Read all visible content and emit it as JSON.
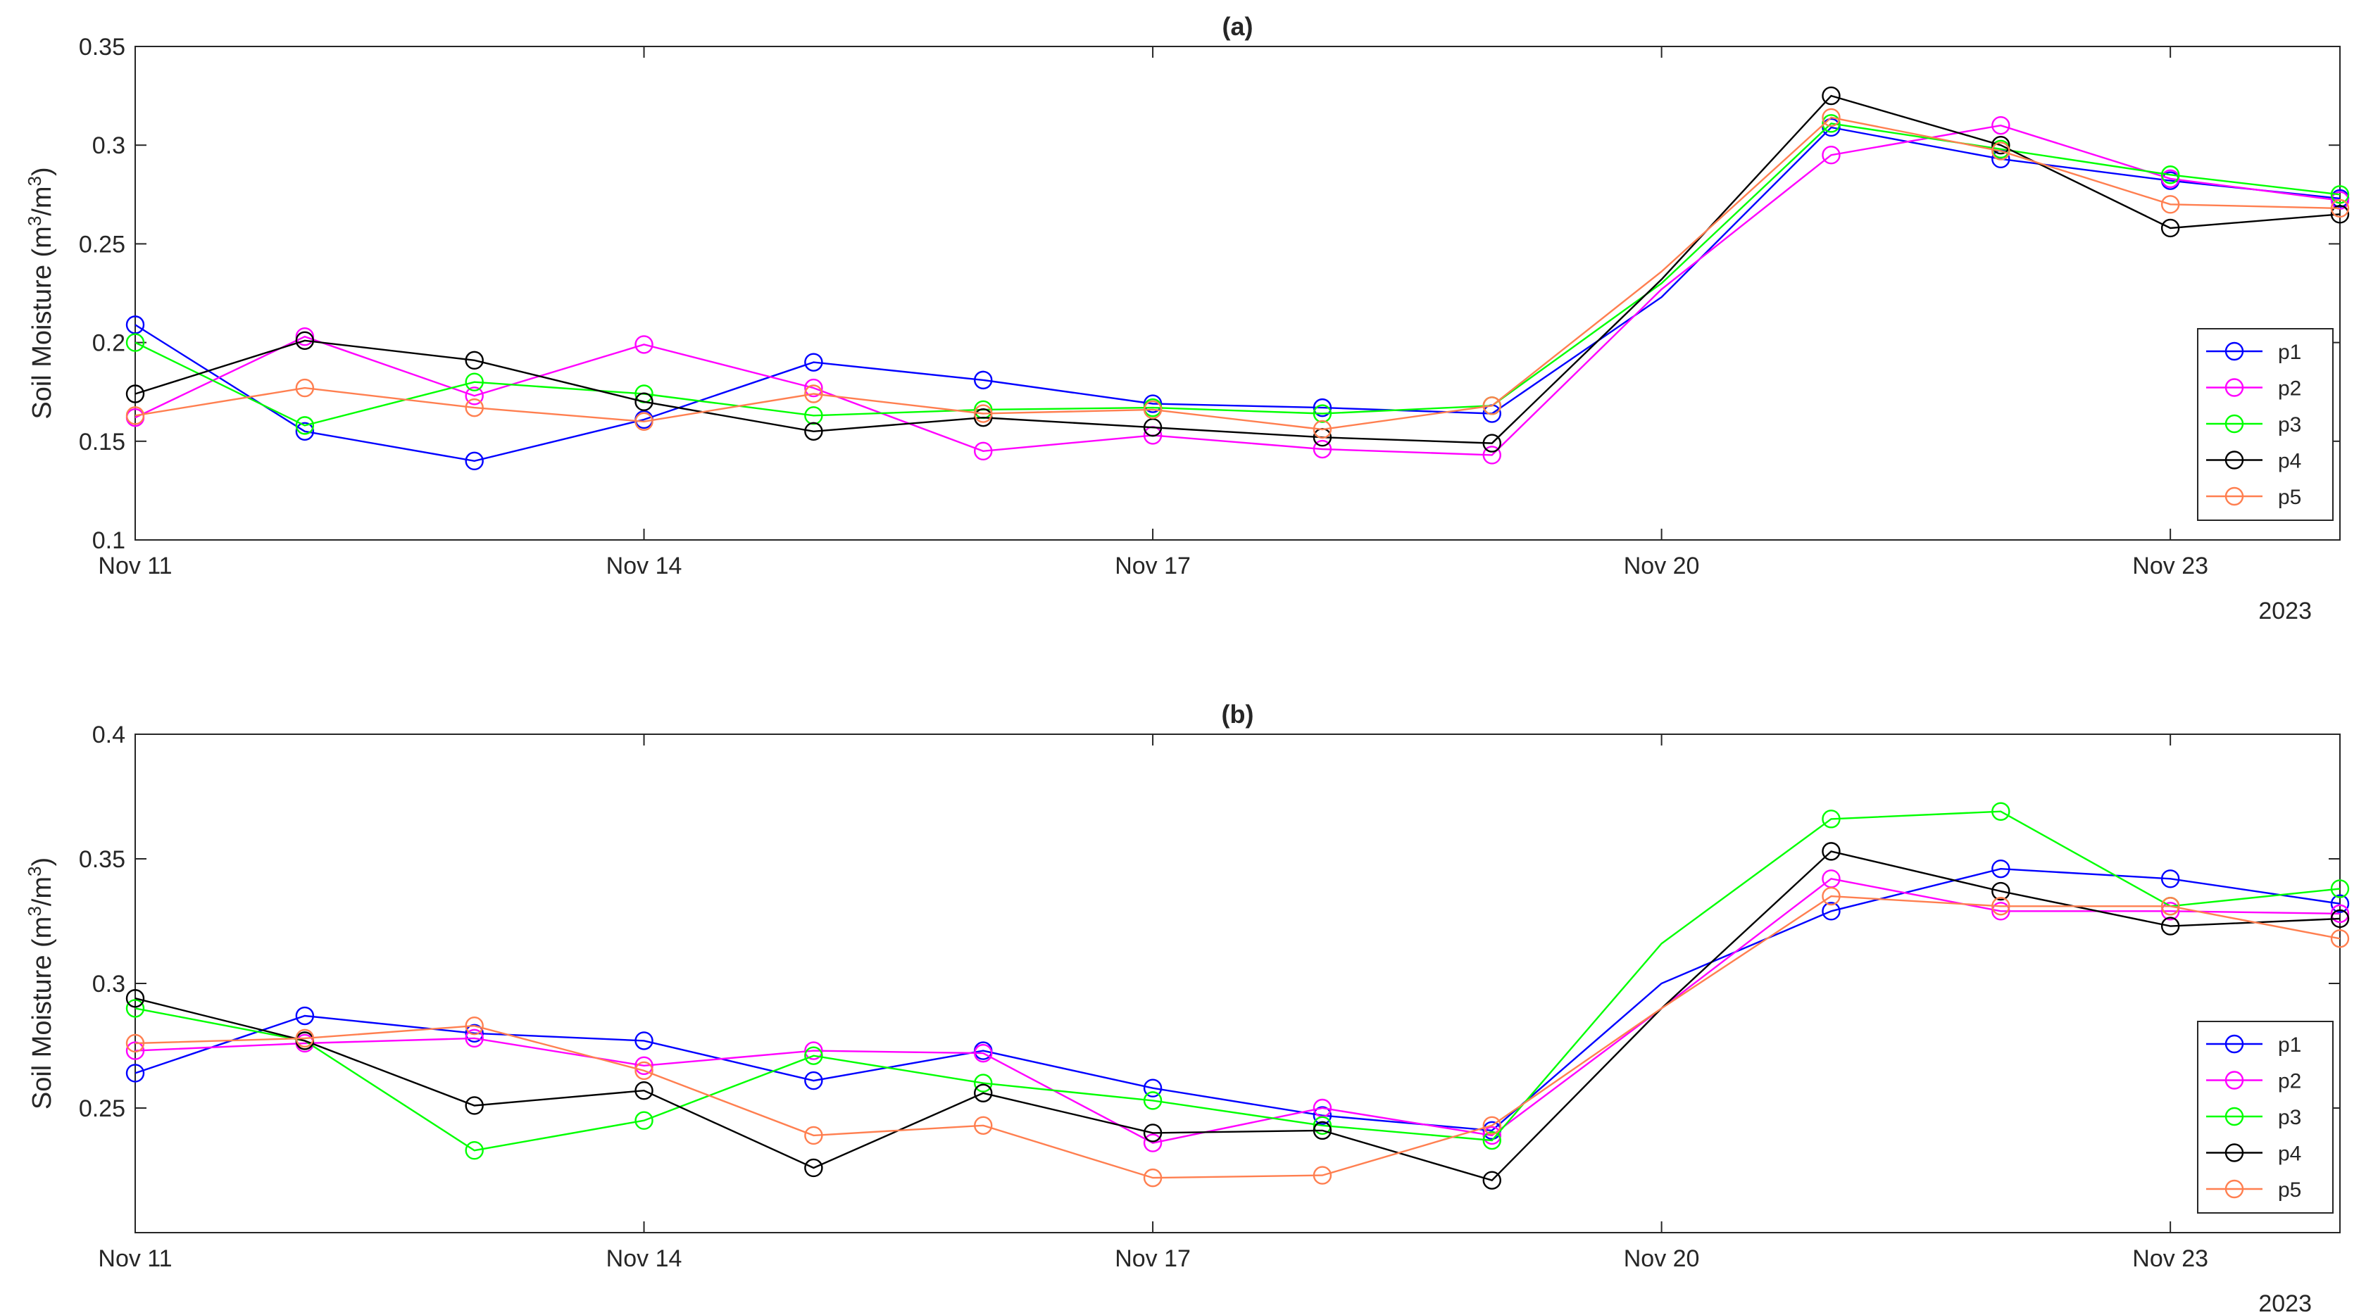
{
  "chart_data": [
    {
      "type": "line",
      "title": "(a)",
      "xlabel": "",
      "ylabel": "Soil Moisture (m",
      "ylabel_sup1": "3",
      "ylabel_mid": "/m",
      "ylabel_sup2": "3",
      "ylabel_end": ")",
      "xlim": [
        0,
        13
      ],
      "ylim": [
        0.1,
        0.35
      ],
      "yticks": [
        0.1,
        0.15,
        0.2,
        0.25,
        0.3,
        0.35
      ],
      "ytick_labels": [
        "0.1",
        "0.15",
        "0.2",
        "0.25",
        "0.3",
        "0.35"
      ],
      "xticks": [
        0,
        3,
        6,
        9,
        12
      ],
      "xtick_labels": [
        "Nov 11",
        "Nov 14",
        "Nov 17",
        "Nov 20",
        "Nov 23"
      ],
      "year_label": "2023",
      "x": [
        0,
        1,
        2,
        3,
        4,
        5,
        6,
        7,
        8,
        9,
        10,
        11,
        12,
        13
      ],
      "legend_position": "bottom-right",
      "series": [
        {
          "name": "p1",
          "color": "#0000ff",
          "markers": [
            true,
            true,
            true,
            true,
            true,
            true,
            true,
            true,
            true,
            false,
            true,
            true,
            true,
            true
          ],
          "values": [
            0.209,
            0.155,
            0.14,
            0.161,
            0.19,
            0.181,
            0.169,
            0.167,
            0.164,
            0.223,
            0.309,
            0.293,
            0.282,
            0.273
          ]
        },
        {
          "name": "p2",
          "color": "#ff00ff",
          "markers": [
            true,
            true,
            true,
            true,
            true,
            true,
            true,
            true,
            true,
            false,
            true,
            true,
            true,
            true
          ],
          "values": [
            0.162,
            0.203,
            0.173,
            0.199,
            0.177,
            0.145,
            0.153,
            0.146,
            0.143,
            0.227,
            0.295,
            0.31,
            0.283,
            0.272
          ]
        },
        {
          "name": "p3",
          "color": "#00ff00",
          "markers": [
            true,
            true,
            true,
            true,
            true,
            true,
            true,
            true,
            true,
            false,
            true,
            true,
            true,
            true
          ],
          "values": [
            0.2,
            0.158,
            0.18,
            0.174,
            0.163,
            0.166,
            0.167,
            0.164,
            0.168,
            0.23,
            0.311,
            0.298,
            0.285,
            0.275
          ]
        },
        {
          "name": "p4",
          "color": "#000000",
          "markers": [
            true,
            true,
            true,
            true,
            true,
            true,
            true,
            true,
            true,
            false,
            true,
            true,
            true,
            true
          ],
          "values": [
            0.174,
            0.201,
            0.191,
            0.17,
            0.155,
            0.162,
            0.157,
            0.152,
            0.149,
            0.232,
            0.325,
            0.3,
            0.258,
            0.265
          ]
        },
        {
          "name": "p5",
          "color": "#ff7f50",
          "markers": [
            true,
            true,
            true,
            true,
            true,
            true,
            true,
            true,
            true,
            false,
            true,
            true,
            true,
            true
          ],
          "values": [
            0.163,
            0.177,
            0.167,
            0.16,
            0.174,
            0.164,
            0.166,
            0.156,
            0.168,
            0.236,
            0.314,
            0.297,
            0.27,
            0.268
          ]
        }
      ],
      "legend": [
        "p1",
        "p2",
        "p3",
        "p4",
        "p5"
      ]
    },
    {
      "type": "line",
      "title": "(b)",
      "xlabel": "",
      "ylabel": "Soil Moisture (m",
      "ylabel_sup1": "3",
      "ylabel_mid": "/m",
      "ylabel_sup2": "3",
      "ylabel_end": ")",
      "xlim": [
        0,
        13
      ],
      "ylim": [
        0.2,
        0.4
      ],
      "yticks": [
        0.25,
        0.3,
        0.35,
        0.4
      ],
      "ytick_labels": [
        "0.25",
        "0.3",
        "0.35",
        "0.4"
      ],
      "xticks": [
        0,
        3,
        6,
        9,
        12
      ],
      "xtick_labels": [
        "Nov 11",
        "Nov 14",
        "Nov 17",
        "Nov 20",
        "Nov 23"
      ],
      "year_label": "2023",
      "x": [
        0,
        1,
        2,
        3,
        4,
        5,
        6,
        7,
        8,
        9,
        10,
        11,
        12,
        13
      ],
      "legend_position": "bottom-right",
      "series": [
        {
          "name": "p1",
          "color": "#0000ff",
          "markers": [
            true,
            true,
            true,
            true,
            true,
            true,
            true,
            true,
            true,
            false,
            true,
            true,
            true,
            true
          ],
          "values": [
            0.264,
            0.287,
            0.28,
            0.277,
            0.261,
            0.273,
            0.258,
            0.247,
            0.241,
            0.3,
            0.329,
            0.346,
            0.342,
            0.332
          ]
        },
        {
          "name": "p2",
          "color": "#ff00ff",
          "markers": [
            true,
            true,
            true,
            true,
            true,
            true,
            true,
            true,
            true,
            false,
            true,
            true,
            true,
            true
          ],
          "values": [
            0.273,
            0.276,
            0.278,
            0.267,
            0.273,
            0.272,
            0.236,
            0.25,
            0.239,
            0.29,
            0.342,
            0.329,
            0.329,
            0.328
          ]
        },
        {
          "name": "p3",
          "color": "#00ff00",
          "markers": [
            true,
            true,
            true,
            true,
            true,
            true,
            true,
            true,
            true,
            false,
            true,
            true,
            true,
            true
          ],
          "values": [
            0.29,
            0.277,
            0.233,
            0.245,
            0.271,
            0.26,
            0.253,
            0.243,
            0.237,
            0.316,
            0.366,
            0.369,
            0.331,
            0.338
          ]
        },
        {
          "name": "p4",
          "color": "#000000",
          "markers": [
            true,
            true,
            true,
            true,
            true,
            true,
            true,
            true,
            true,
            false,
            true,
            true,
            true,
            true
          ],
          "values": [
            0.294,
            0.277,
            0.251,
            0.257,
            0.226,
            0.256,
            0.24,
            0.241,
            0.221,
            0.29,
            0.353,
            0.337,
            0.323,
            0.326
          ]
        },
        {
          "name": "p5",
          "color": "#ff7f50",
          "markers": [
            true,
            true,
            true,
            true,
            true,
            true,
            true,
            true,
            true,
            false,
            true,
            true,
            true,
            true
          ],
          "values": [
            0.276,
            0.278,
            0.283,
            0.265,
            0.239,
            0.243,
            0.222,
            0.223,
            0.243,
            0.29,
            0.335,
            0.331,
            0.331,
            0.318
          ]
        }
      ],
      "legend": [
        "p1",
        "p2",
        "p3",
        "p4",
        "p5"
      ]
    }
  ]
}
